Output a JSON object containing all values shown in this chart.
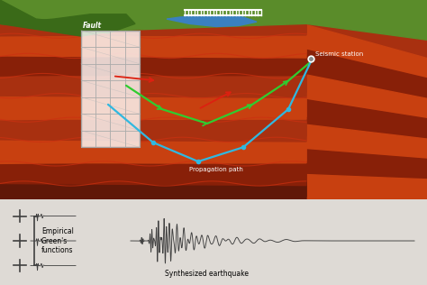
{
  "bg_color": "#dedad5",
  "upper": {
    "green_light": "#5a8c2a",
    "green_dark": "#3a6a18",
    "lake_blue": "#3a80c0",
    "rock_1": "#c84010",
    "rock_2": "#a83010",
    "rock_3": "#882008",
    "rock_4": "#601808",
    "rock_5": "#b03808",
    "rock_6": "#d04a18",
    "surface_bg": "#b0a898",
    "fault_label": "Fault",
    "seismic_label": "Seismic station",
    "propagation_label": "Propagation path",
    "path_green": "#30cc30",
    "path_blue": "#30b8e0",
    "path_red": "#dd2010"
  },
  "lower": {
    "bg": "#dedad5",
    "label_egf": "Empirical\nGreen's\nfunctions",
    "label_synth": "Synthesized earthquake",
    "wave_color": "#404040"
  }
}
